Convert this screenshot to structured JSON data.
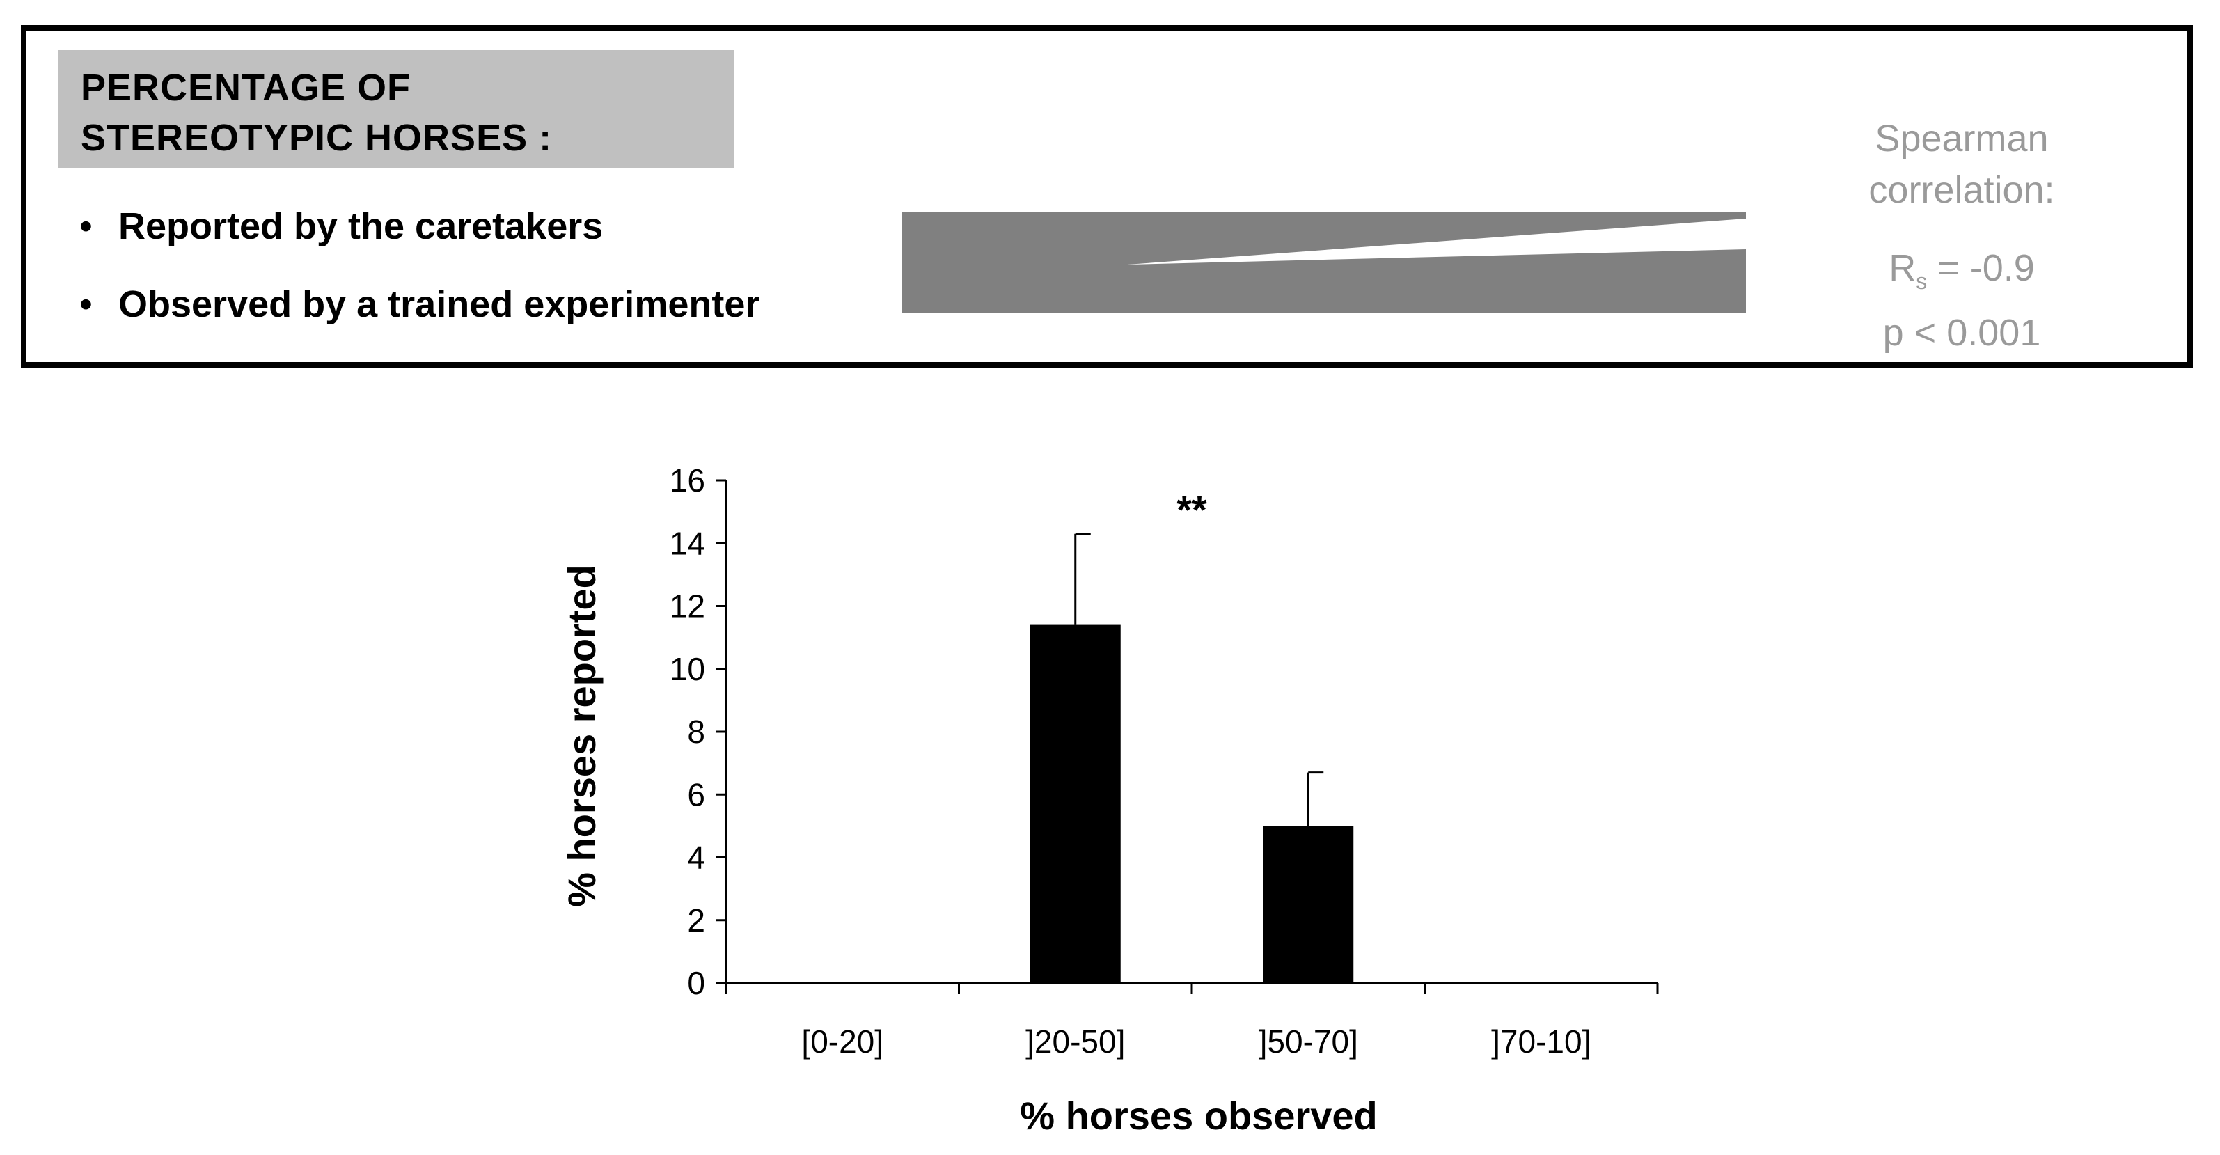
{
  "panel": {
    "title_line1": "PERCENTAGE  OF",
    "title_line2": "STEREOTYPIC HORSES :",
    "bullet_symbol": "•",
    "item1": "Reported by the caretakers",
    "item2": "Observed by a trained experimenter",
    "stats_line1": "Spearman",
    "stats_line2": "correlation:",
    "rs_symbol": "R",
    "rs_sub": "s",
    "rs_value": " = -0.9",
    "p_value": "p < 0.001",
    "wedge_color": "#808080",
    "title_bg": "#c0c0c0",
    "stats_color": "#9a9a9a"
  },
  "chart_data": {
    "type": "bar",
    "categories": [
      "[0-20]",
      "]20-50]",
      "]50-70]",
      "]70-10]"
    ],
    "values": [
      0,
      11.4,
      5.0,
      0
    ],
    "errors": [
      0,
      2.9,
      1.7,
      0
    ],
    "ylim": [
      0,
      16
    ],
    "yticks": [
      0,
      2,
      4,
      6,
      8,
      10,
      12,
      14,
      16
    ],
    "xlabel": "% horses observed",
    "ylabel": "% horses reported",
    "annotation": {
      "text": "**",
      "x_between": [
        "]20-50]",
        "]50-70]"
      ],
      "y": 15.3
    },
    "bar_color": "#000000",
    "grid": false
  }
}
